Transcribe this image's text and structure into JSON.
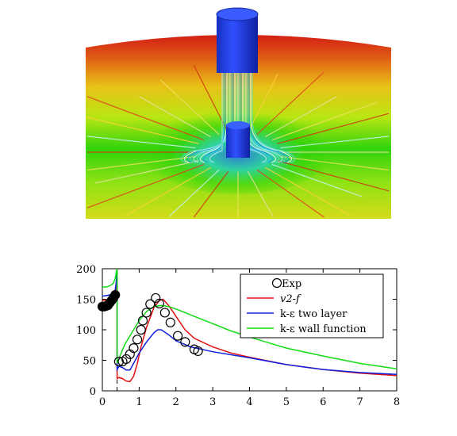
{
  "figure": {
    "render_colors": [
      "#d21e14",
      "#e8c217",
      "#b8e613",
      "#2fd30c",
      "#2f7bd1",
      "#1f2fe0"
    ]
  },
  "chart_data": {
    "type": "line",
    "title": "",
    "xlabel": "",
    "ylabel": "",
    "xlim": [
      0,
      8
    ],
    "ylim": [
      0,
      200
    ],
    "xticks": [
      "0",
      "1",
      "2",
      "3",
      "4",
      "5",
      "6",
      "7",
      "8"
    ],
    "yticks": [
      "0",
      "50",
      "100",
      "150",
      "200"
    ],
    "grid": false,
    "legend_position": "top-right",
    "reference_line_x": 0.4,
    "series": [
      {
        "name": "Exp",
        "kind": "markers",
        "color": "#000000",
        "points": [
          [
            0,
            138
          ],
          [
            0.05,
            138
          ],
          [
            0.1,
            139
          ],
          [
            0.15,
            140
          ],
          [
            0.2,
            144
          ],
          [
            0.25,
            148
          ],
          [
            0.3,
            152
          ],
          [
            0.35,
            157
          ],
          [
            0.45,
            48
          ],
          [
            0.55,
            48
          ],
          [
            0.65,
            52
          ],
          [
            0.75,
            60
          ],
          [
            0.85,
            70
          ],
          [
            0.95,
            84
          ],
          [
            1.05,
            100
          ],
          [
            1.1,
            115
          ],
          [
            1.2,
            128
          ],
          [
            1.3,
            142
          ],
          [
            1.45,
            152
          ],
          [
            1.55,
            143
          ],
          [
            1.7,
            128
          ],
          [
            1.85,
            112
          ],
          [
            2.05,
            90
          ],
          [
            2.25,
            80
          ],
          [
            2.5,
            68
          ],
          [
            2.6,
            65
          ]
        ]
      },
      {
        "name": "v2-f",
        "kind": "line",
        "color": "#e01010",
        "points": [
          [
            0,
            148
          ],
          [
            0.1,
            149
          ],
          [
            0.2,
            150
          ],
          [
            0.3,
            152
          ],
          [
            0.35,
            158
          ],
          [
            0.38,
            170
          ],
          [
            0.4,
            200
          ],
          [
            0.4,
            20
          ],
          [
            0.45,
            22
          ],
          [
            0.55,
            20
          ],
          [
            0.65,
            16
          ],
          [
            0.75,
            15
          ],
          [
            0.85,
            24
          ],
          [
            0.95,
            45
          ],
          [
            1.05,
            72
          ],
          [
            1.2,
            104
          ],
          [
            1.4,
            136
          ],
          [
            1.55,
            148
          ],
          [
            1.65,
            150
          ],
          [
            1.8,
            140
          ],
          [
            2,
            122
          ],
          [
            2.25,
            100
          ],
          [
            2.5,
            86
          ],
          [
            3,
            72
          ],
          [
            3.5,
            62
          ],
          [
            4,
            55
          ],
          [
            5,
            43
          ],
          [
            6,
            35
          ],
          [
            7,
            29
          ],
          [
            8,
            25
          ]
        ]
      },
      {
        "name": "k-ε two layer",
        "kind": "line",
        "color": "#1020e0",
        "points": [
          [
            0,
            155
          ],
          [
            0.1,
            156
          ],
          [
            0.2,
            157
          ],
          [
            0.3,
            160
          ],
          [
            0.35,
            165
          ],
          [
            0.38,
            180
          ],
          [
            0.4,
            200
          ],
          [
            0.4,
            35
          ],
          [
            0.45,
            40
          ],
          [
            0.55,
            38
          ],
          [
            0.65,
            34
          ],
          [
            0.75,
            34
          ],
          [
            0.85,
            45
          ],
          [
            1,
            62
          ],
          [
            1.2,
            80
          ],
          [
            1.4,
            95
          ],
          [
            1.5,
            100
          ],
          [
            1.6,
            100
          ],
          [
            1.8,
            92
          ],
          [
            2,
            82
          ],
          [
            2.4,
            72
          ],
          [
            3,
            64
          ],
          [
            4,
            54
          ],
          [
            5,
            43
          ],
          [
            6,
            35
          ],
          [
            7,
            30
          ],
          [
            8,
            27
          ]
        ]
      },
      {
        "name": "k-ε wall function",
        "kind": "line",
        "color": "#12dd12",
        "points": [
          [
            0,
            170
          ],
          [
            0.1,
            170
          ],
          [
            0.2,
            172
          ],
          [
            0.3,
            176
          ],
          [
            0.35,
            184
          ],
          [
            0.38,
            195
          ],
          [
            0.4,
            200
          ],
          [
            0.4,
            45
          ],
          [
            0.5,
            60
          ],
          [
            0.6,
            75
          ],
          [
            0.8,
            95
          ],
          [
            1,
            115
          ],
          [
            1.2,
            130
          ],
          [
            1.4,
            138
          ],
          [
            1.6,
            140
          ],
          [
            1.8,
            138
          ],
          [
            2,
            134
          ],
          [
            2.5,
            122
          ],
          [
            3,
            110
          ],
          [
            3.5,
            98
          ],
          [
            4,
            88
          ],
          [
            4.5,
            79
          ],
          [
            5,
            70
          ],
          [
            6,
            57
          ],
          [
            7,
            45
          ],
          [
            8,
            36
          ]
        ]
      }
    ]
  }
}
